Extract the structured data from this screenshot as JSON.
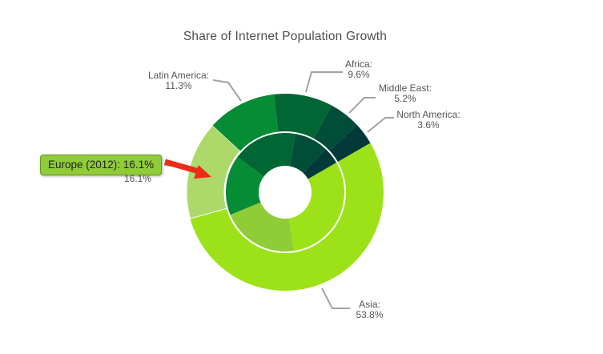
{
  "title": "Share of Internet Population Growth",
  "chart_data": {
    "type": "donut",
    "title": "Share of Internet Population Growth",
    "legend": "none",
    "start_angle_clockwise_from_top": 60,
    "direction": "clockwise",
    "categories": [
      "Asia",
      "Europe",
      "Latin America",
      "Africa",
      "Middle East",
      "North America"
    ],
    "colors": {
      "Asia": "#9de219",
      "Europe": "#90cc38",
      "Latin America": "#068c35",
      "Africa": "#006634",
      "Middle East": "#004d38",
      "North America": "#033939"
    },
    "series": [
      {
        "ring": "inner",
        "name": "",
        "values": [
          30.8,
          21.1,
          16.3,
          17.6,
          9.2,
          4.6
        ],
        "note": "values estimated from arc angles; not labeled in image"
      },
      {
        "ring": "outer",
        "name": "2012",
        "values": [
          53.8,
          16.1,
          11.3,
          9.6,
          5.2,
          3.6
        ]
      }
    ],
    "outer_labels": [
      {
        "category": "Asia",
        "lines": [
          "Asia:",
          "53.8%"
        ]
      },
      {
        "category": "Europe",
        "lines": [
          "Europe:",
          "16.1%"
        ],
        "note": "mostly hidden behind tooltip"
      },
      {
        "category": "Latin America",
        "lines": [
          "Latin America:",
          "11.3%"
        ]
      },
      {
        "category": "Africa",
        "lines": [
          "Africa:",
          "9.6%"
        ]
      },
      {
        "category": "Middle East",
        "lines": [
          "Middle East:",
          "5.2%"
        ]
      },
      {
        "category": "North America",
        "lines": [
          "North America:",
          "3.6%"
        ]
      }
    ],
    "hovered_slice": {
      "ring": "outer",
      "category": "Europe"
    }
  },
  "tooltip": {
    "text": "Europe (2012): 16.1%",
    "background": "#90cc38",
    "text_color": "#222222"
  },
  "annotation_arrow": {
    "color": "#ed2b17"
  },
  "styles": {
    "background": "#ffffff",
    "title_color": "#4e4e4e",
    "label_color": "#555555",
    "leader_line_color": "#a2a2a2",
    "hover_overlay": "rgba(255,255,255,0.25)"
  }
}
